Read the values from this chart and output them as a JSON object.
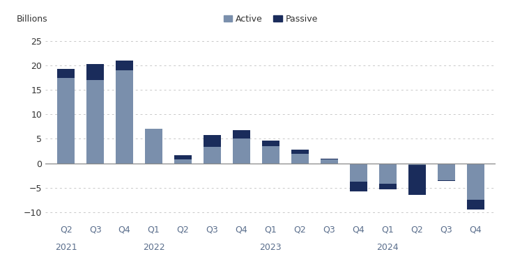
{
  "quarter_labels": [
    "Q2",
    "Q3",
    "Q4",
    "Q1",
    "Q2",
    "Q3",
    "Q4",
    "Q1",
    "Q2",
    "Q3",
    "Q4",
    "Q1",
    "Q2",
    "Q3",
    "Q4"
  ],
  "year_labels": [
    "2021",
    "",
    "",
    "2022",
    "",
    "",
    "",
    "2023",
    "",
    "",
    "",
    "2024",
    "",
    "",
    ""
  ],
  "year_tick_indices": [
    0,
    3,
    7,
    11
  ],
  "year_tick_names": [
    "2021",
    "2022",
    "2023",
    "2024"
  ],
  "active_values": [
    17.5,
    17.0,
    19.0,
    7.0,
    0.8,
    3.3,
    5.0,
    3.5,
    1.9,
    0.8,
    -5.8,
    -5.3,
    -0.3,
    -3.5,
    -9.5
  ],
  "passive_values": [
    1.8,
    3.3,
    2.0,
    0.0,
    0.8,
    2.5,
    1.8,
    1.1,
    0.9,
    0.1,
    2.0,
    1.1,
    -6.2,
    -0.2,
    2.0
  ],
  "active_color": "#7a8fac",
  "passive_color": "#1a2c5b",
  "ylabel": "Billions",
  "ylim": [
    -12,
    27
  ],
  "yticks": [
    -10,
    -5,
    0,
    5,
    10,
    15,
    20,
    25
  ],
  "grid_color": "#c8c8c8",
  "background_color": "#ffffff",
  "zero_line_color": "#888888",
  "legend_active": "Active",
  "legend_passive": "Passive",
  "bar_width": 0.6,
  "tick_color": "#5a6e8c",
  "label_fontsize": 9
}
